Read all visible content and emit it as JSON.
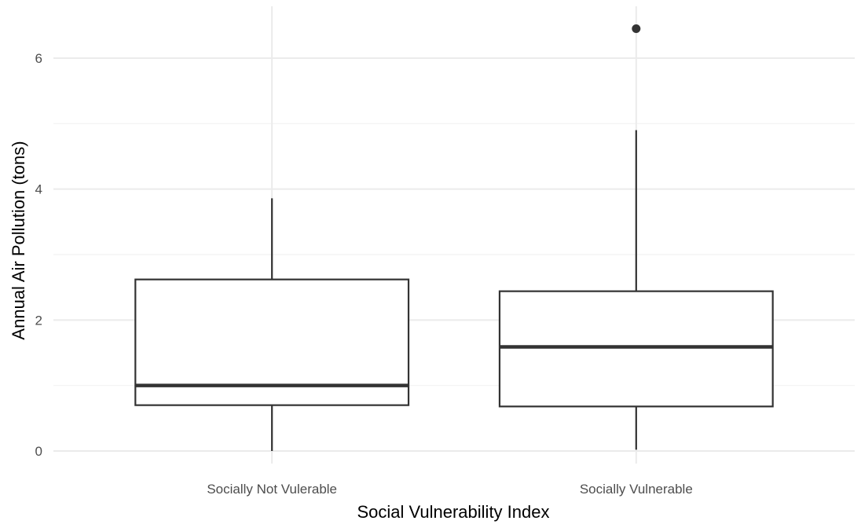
{
  "chart_data": {
    "type": "boxplot",
    "xlabel": "Social Vulnerability Index",
    "ylabel": "Annual Air Pollution (tons)",
    "ylim": [
      -0.1,
      6.8
    ],
    "yticks": [
      0,
      2,
      4,
      6
    ],
    "grid": true,
    "categories": [
      "Socially Not Vulerable",
      "Socially Vulnerable"
    ],
    "boxes": [
      {
        "category": "Socially Not Vulerable",
        "min": 0.0,
        "q1": 0.7,
        "median": 1.0,
        "q3": 2.62,
        "max": 3.86,
        "outliers": []
      },
      {
        "category": "Socially Vulnerable",
        "min": 0.02,
        "q1": 0.68,
        "median": 1.59,
        "q3": 2.44,
        "max": 4.9,
        "outliers": [
          6.45
        ]
      }
    ]
  }
}
